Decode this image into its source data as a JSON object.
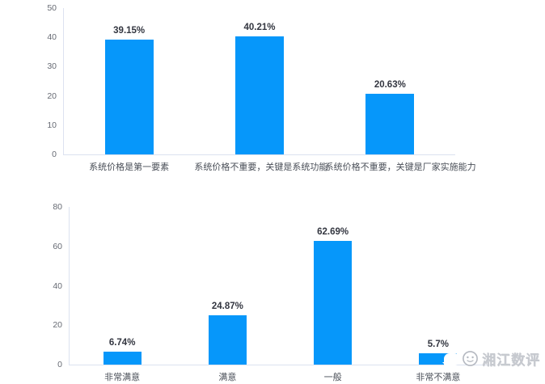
{
  "watermark": {
    "text": "湘江数评",
    "logo": "xiangjiang-shuping-face-logo"
  },
  "colors": {
    "bar_blue": "#0697fa",
    "axis_line": "#dce2f0",
    "value_label": "#333640",
    "category_label": "#4a4f58",
    "tick_label": "#666a73"
  },
  "chart_data": [
    {
      "type": "bar",
      "title": "",
      "xlabel": "",
      "ylabel": "",
      "categories": [
        "系统价格是第一要素",
        "系统价格不重要，关键是系统功能",
        "系统价格不重要，关键是厂家实施能力"
      ],
      "values": [
        39.15,
        40.21,
        20.63
      ],
      "labels": [
        "39.15%",
        "40.21%",
        "20.63%"
      ],
      "ylim": [
        0,
        50
      ],
      "yticks": [
        0,
        10,
        20,
        30,
        40,
        50
      ],
      "grid": false,
      "legend": null,
      "bar_color": "#0697fa"
    },
    {
      "type": "bar",
      "title": "",
      "xlabel": "",
      "ylabel": "",
      "categories": [
        "非常满意",
        "满意",
        "一般",
        "非常不满意"
      ],
      "values": [
        6.74,
        24.87,
        62.69,
        5.7
      ],
      "labels": [
        "6.74%",
        "24.87%",
        "62.69%",
        "5.7%"
      ],
      "ylim": [
        0,
        80
      ],
      "yticks": [
        0,
        20,
        40,
        60,
        80
      ],
      "grid": false,
      "legend": null,
      "bar_color": "#0697fa"
    }
  ]
}
